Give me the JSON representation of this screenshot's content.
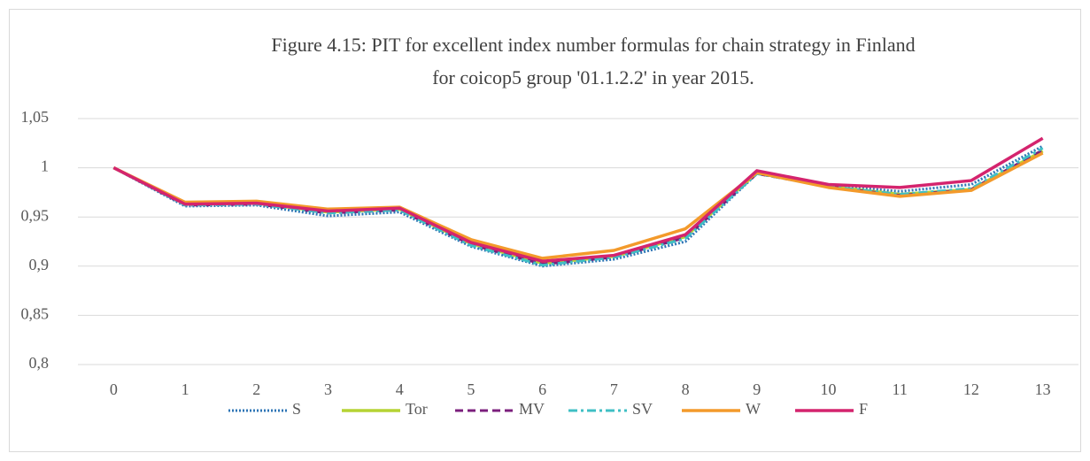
{
  "chart_data": {
    "type": "line",
    "title": [
      "Figure 4.15: PIT for excellent index number formulas for chain strategy in Finland",
      "for coicop5 group '01.1.2.2' in year 2015."
    ],
    "categories": [
      "0",
      "1",
      "2",
      "3",
      "4",
      "5",
      "6",
      "7",
      "8",
      "9",
      "10",
      "11",
      "12",
      "13"
    ],
    "series": [
      {
        "name": "S",
        "color": "#2e75b6",
        "dash": "dotted",
        "values": [
          1,
          0.961,
          0.962,
          0.951,
          0.955,
          0.92,
          0.9,
          0.907,
          0.925,
          0.994,
          0.982,
          0.976,
          0.983,
          1.022
        ]
      },
      {
        "name": "Tor",
        "color": "#b5d334",
        "dash": "solid",
        "values": [
          1,
          0.963,
          0.964,
          0.955,
          0.958,
          0.923,
          0.903,
          0.91,
          0.93,
          0.995,
          0.981,
          0.973,
          0.978,
          1.017
        ]
      },
      {
        "name": "MV",
        "color": "#7b1f7c",
        "dash": "dashed",
        "values": [
          1,
          0.962,
          0.963,
          0.954,
          0.957,
          0.922,
          0.902,
          0.909,
          0.929,
          0.994,
          0.981,
          0.972,
          0.978,
          1.018
        ]
      },
      {
        "name": "SV",
        "color": "#3fbfc4",
        "dash": "dashdot",
        "values": [
          1,
          0.962,
          0.963,
          0.954,
          0.957,
          0.921,
          0.901,
          0.909,
          0.928,
          0.994,
          0.981,
          0.973,
          0.979,
          1.02
        ]
      },
      {
        "name": "W",
        "color": "#f39a2b",
        "dash": "solid",
        "values": [
          1,
          0.965,
          0.966,
          0.958,
          0.96,
          0.927,
          0.908,
          0.916,
          0.938,
          0.995,
          0.98,
          0.971,
          0.977,
          1.015
        ]
      },
      {
        "name": "F",
        "color": "#d4246e",
        "dash": "solid",
        "values": [
          1,
          0.963,
          0.964,
          0.956,
          0.959,
          0.924,
          0.905,
          0.911,
          0.932,
          0.997,
          0.983,
          0.98,
          0.987,
          1.03
        ]
      }
    ],
    "ylim": [
      0.8,
      1.05
    ],
    "yticks": [
      {
        "value": 0.8,
        "label": "0,8"
      },
      {
        "value": 0.85,
        "label": "0,85"
      },
      {
        "value": 0.9,
        "label": "0,9"
      },
      {
        "value": 0.95,
        "label": "0,95"
      },
      1,
      {
        "value": 1.05,
        "label": "1,05"
      }
    ],
    "grid": true,
    "legend": "bottom"
  }
}
